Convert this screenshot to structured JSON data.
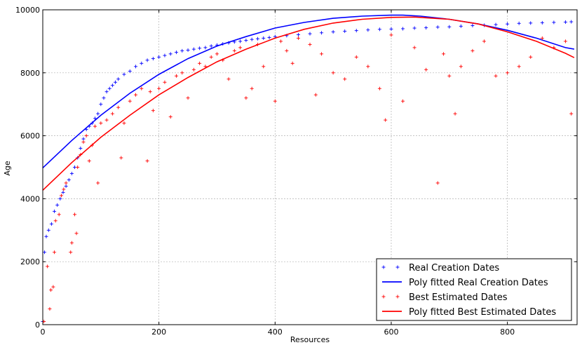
{
  "chart_data": {
    "type": "scatter",
    "title": "",
    "xlabel": "Resources",
    "ylabel": "Age",
    "xlim": [
      0,
      920
    ],
    "ylim": [
      0,
      10000
    ],
    "xticks": [
      0,
      200,
      400,
      600,
      800
    ],
    "yticks": [
      0,
      2000,
      4000,
      6000,
      8000,
      10000
    ],
    "xtick_labels": [
      "0",
      "200",
      "400",
      "600",
      "800"
    ],
    "ytick_labels": [
      "0",
      "2000",
      "4000",
      "6000",
      "8000",
      "10000"
    ],
    "grid": true,
    "legend_position": "bottom-right",
    "series": [
      {
        "name": "Real Creation Dates",
        "kind": "scatter",
        "marker": "+",
        "color": "#0000ff",
        "points": [
          [
            0,
            100
          ],
          [
            3,
            2300
          ],
          [
            6,
            2800
          ],
          [
            10,
            3000
          ],
          [
            15,
            3200
          ],
          [
            20,
            3600
          ],
          [
            25,
            3800
          ],
          [
            30,
            4000
          ],
          [
            35,
            4200
          ],
          [
            40,
            4400
          ],
          [
            45,
            4600
          ],
          [
            50,
            4800
          ],
          [
            55,
            5000
          ],
          [
            60,
            5300
          ],
          [
            65,
            5600
          ],
          [
            70,
            5900
          ],
          [
            75,
            6200
          ],
          [
            80,
            6300
          ],
          [
            85,
            6400
          ],
          [
            90,
            6550
          ],
          [
            95,
            6700
          ],
          [
            100,
            7000
          ],
          [
            105,
            7200
          ],
          [
            110,
            7400
          ],
          [
            115,
            7500
          ],
          [
            120,
            7600
          ],
          [
            125,
            7700
          ],
          [
            130,
            7800
          ],
          [
            140,
            7950
          ],
          [
            150,
            8050
          ],
          [
            160,
            8200
          ],
          [
            170,
            8300
          ],
          [
            180,
            8400
          ],
          [
            190,
            8450
          ],
          [
            200,
            8500
          ],
          [
            210,
            8550
          ],
          [
            220,
            8600
          ],
          [
            230,
            8650
          ],
          [
            240,
            8700
          ],
          [
            250,
            8720
          ],
          [
            260,
            8750
          ],
          [
            270,
            8780
          ],
          [
            280,
            8800
          ],
          [
            290,
            8850
          ],
          [
            300,
            8880
          ],
          [
            310,
            8920
          ],
          [
            320,
            8950
          ],
          [
            330,
            8980
          ],
          [
            340,
            9000
          ],
          [
            350,
            9030
          ],
          [
            360,
            9060
          ],
          [
            370,
            9080
          ],
          [
            380,
            9100
          ],
          [
            390,
            9120
          ],
          [
            400,
            9150
          ],
          [
            420,
            9180
          ],
          [
            440,
            9210
          ],
          [
            460,
            9240
          ],
          [
            480,
            9270
          ],
          [
            500,
            9300
          ],
          [
            520,
            9320
          ],
          [
            540,
            9340
          ],
          [
            560,
            9360
          ],
          [
            580,
            9380
          ],
          [
            600,
            9390
          ],
          [
            620,
            9400
          ],
          [
            640,
            9420
          ],
          [
            660,
            9430
          ],
          [
            680,
            9450
          ],
          [
            700,
            9460
          ],
          [
            720,
            9480
          ],
          [
            740,
            9500
          ],
          [
            760,
            9510
          ],
          [
            780,
            9530
          ],
          [
            800,
            9550
          ],
          [
            820,
            9570
          ],
          [
            840,
            9580
          ],
          [
            860,
            9590
          ],
          [
            880,
            9600
          ],
          [
            900,
            9610
          ],
          [
            910,
            9620
          ]
        ]
      },
      {
        "name": "Poly fitted Real Creation Dates",
        "kind": "line",
        "color": "#0000ff",
        "points": [
          [
            0,
            4980
          ],
          [
            50,
            5850
          ],
          [
            100,
            6650
          ],
          [
            150,
            7350
          ],
          [
            200,
            7950
          ],
          [
            250,
            8450
          ],
          [
            300,
            8850
          ],
          [
            350,
            9150
          ],
          [
            400,
            9420
          ],
          [
            450,
            9600
          ],
          [
            500,
            9730
          ],
          [
            550,
            9800
          ],
          [
            600,
            9830
          ],
          [
            620,
            9830
          ],
          [
            650,
            9800
          ],
          [
            700,
            9700
          ],
          [
            750,
            9550
          ],
          [
            800,
            9350
          ],
          [
            850,
            9100
          ],
          [
            900,
            8800
          ],
          [
            915,
            8750
          ]
        ]
      },
      {
        "name": "Best Estimated Dates",
        "kind": "scatter",
        "marker": "+",
        "color": "#ff0000",
        "points": [
          [
            2,
            100
          ],
          [
            8,
            1850
          ],
          [
            12,
            500
          ],
          [
            14,
            1100
          ],
          [
            18,
            1200
          ],
          [
            20,
            2300
          ],
          [
            22,
            3300
          ],
          [
            28,
            3500
          ],
          [
            32,
            4100
          ],
          [
            36,
            4300
          ],
          [
            40,
            4500
          ],
          [
            48,
            2300
          ],
          [
            50,
            2600
          ],
          [
            55,
            3500
          ],
          [
            58,
            2900
          ],
          [
            60,
            5000
          ],
          [
            65,
            5400
          ],
          [
            70,
            5800
          ],
          [
            75,
            6000
          ],
          [
            80,
            5200
          ],
          [
            85,
            5700
          ],
          [
            90,
            6300
          ],
          [
            95,
            4500
          ],
          [
            100,
            6400
          ],
          [
            110,
            6500
          ],
          [
            120,
            6700
          ],
          [
            130,
            6900
          ],
          [
            135,
            5300
          ],
          [
            140,
            6400
          ],
          [
            150,
            7100
          ],
          [
            160,
            7300
          ],
          [
            170,
            7500
          ],
          [
            180,
            5200
          ],
          [
            185,
            7400
          ],
          [
            190,
            6800
          ],
          [
            200,
            7500
          ],
          [
            210,
            7700
          ],
          [
            220,
            6600
          ],
          [
            230,
            7900
          ],
          [
            240,
            8000
          ],
          [
            250,
            7200
          ],
          [
            260,
            8100
          ],
          [
            270,
            8300
          ],
          [
            280,
            8200
          ],
          [
            290,
            8500
          ],
          [
            300,
            8600
          ],
          [
            310,
            8400
          ],
          [
            320,
            7800
          ],
          [
            330,
            8700
          ],
          [
            340,
            8800
          ],
          [
            350,
            7200
          ],
          [
            360,
            7500
          ],
          [
            370,
            8900
          ],
          [
            380,
            8200
          ],
          [
            400,
            7100
          ],
          [
            410,
            9000
          ],
          [
            420,
            8700
          ],
          [
            430,
            8300
          ],
          [
            440,
            9100
          ],
          [
            460,
            8900
          ],
          [
            470,
            7300
          ],
          [
            480,
            8600
          ],
          [
            500,
            8000
          ],
          [
            520,
            7800
          ],
          [
            540,
            8500
          ],
          [
            560,
            8200
          ],
          [
            580,
            7500
          ],
          [
            590,
            6500
          ],
          [
            600,
            9200
          ],
          [
            620,
            7100
          ],
          [
            640,
            8800
          ],
          [
            660,
            8100
          ],
          [
            680,
            4500
          ],
          [
            690,
            8600
          ],
          [
            700,
            7900
          ],
          [
            710,
            6700
          ],
          [
            720,
            8200
          ],
          [
            740,
            8700
          ],
          [
            760,
            9000
          ],
          [
            780,
            7900
          ],
          [
            800,
            8000
          ],
          [
            820,
            8200
          ],
          [
            840,
            8500
          ],
          [
            860,
            9100
          ],
          [
            880,
            8800
          ],
          [
            900,
            9000
          ],
          [
            910,
            6700
          ]
        ]
      },
      {
        "name": "Poly fitted Best Estimated Dates",
        "kind": "line",
        "color": "#ff0000",
        "points": [
          [
            0,
            4270
          ],
          [
            50,
            5150
          ],
          [
            100,
            5950
          ],
          [
            150,
            6650
          ],
          [
            200,
            7300
          ],
          [
            250,
            7850
          ],
          [
            300,
            8350
          ],
          [
            350,
            8750
          ],
          [
            400,
            9100
          ],
          [
            450,
            9380
          ],
          [
            500,
            9580
          ],
          [
            550,
            9700
          ],
          [
            600,
            9760
          ],
          [
            640,
            9770
          ],
          [
            700,
            9700
          ],
          [
            750,
            9550
          ],
          [
            800,
            9300
          ],
          [
            850,
            9000
          ],
          [
            900,
            8620
          ],
          [
            915,
            8480
          ]
        ]
      }
    ]
  }
}
